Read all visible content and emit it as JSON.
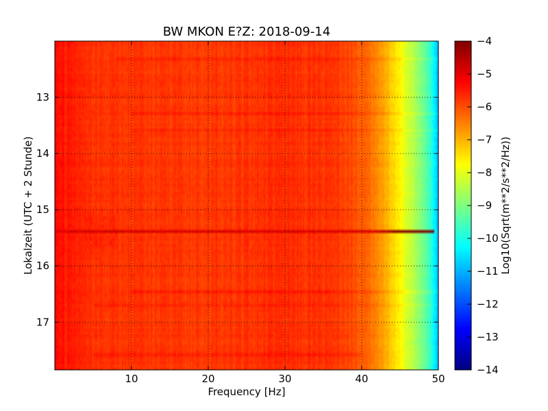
{
  "chart_data": {
    "type": "heatmap",
    "title": "BW MKON E?Z: 2018-09-14",
    "xlabel": "Frequency [Hz]",
    "ylabel": "Lokalzeit (UTC + 2 Stunde)",
    "colorbar_label": "Log10(Sqrt(m**2/s**2/Hz))",
    "xlim": [
      0,
      50
    ],
    "ylim": [
      12.0,
      17.85
    ],
    "y_axis_inverted": true,
    "xticks": [
      10,
      20,
      30,
      40,
      50
    ],
    "yticks": [
      13,
      14,
      15,
      16,
      17
    ],
    "clim": [
      -14,
      -4
    ],
    "colorbar_ticks": [
      -4,
      -5,
      -6,
      -7,
      -8,
      -9,
      -10,
      -11,
      -12,
      -13,
      -14
    ],
    "colormap": "jet",
    "grid": true,
    "grid_style": "dotted",
    "spectral_profile": {
      "frequency_hz": [
        0,
        5,
        10,
        20,
        30,
        35,
        38,
        40,
        42,
        43,
        44,
        45,
        46,
        47,
        48,
        49,
        49.5,
        50
      ],
      "log10_amplitude": [
        -5.4,
        -5.7,
        -5.8,
        -5.8,
        -5.7,
        -5.75,
        -5.9,
        -6.1,
        -6.6,
        -6.9,
        -7.3,
        -7.7,
        -8.2,
        -8.6,
        -9.1,
        -9.8,
        -10.4,
        -11.0
      ]
    },
    "strong_band": {
      "time": 15.38,
      "freq_range": [
        0,
        50
      ],
      "log10_amplitude": -4.9
    },
    "weak_bands": [
      {
        "time": 12.3,
        "freq_range": [
          8,
          50
        ]
      },
      {
        "time": 13.3,
        "freq_range": [
          10,
          50
        ]
      },
      {
        "time": 13.6,
        "freq_range": [
          10,
          50
        ]
      },
      {
        "time": 16.45,
        "freq_range": [
          10,
          50
        ]
      },
      {
        "time": 16.7,
        "freq_range": [
          5,
          50
        ]
      },
      {
        "time": 17.6,
        "freq_range": [
          5,
          40
        ]
      }
    ],
    "colors": {
      "jet_stops": [
        "#00007f",
        "#0000ff",
        "#007fff",
        "#00ffff",
        "#7fff7f",
        "#ffff00",
        "#ff7f00",
        "#ff0000",
        "#7f0000"
      ]
    }
  }
}
